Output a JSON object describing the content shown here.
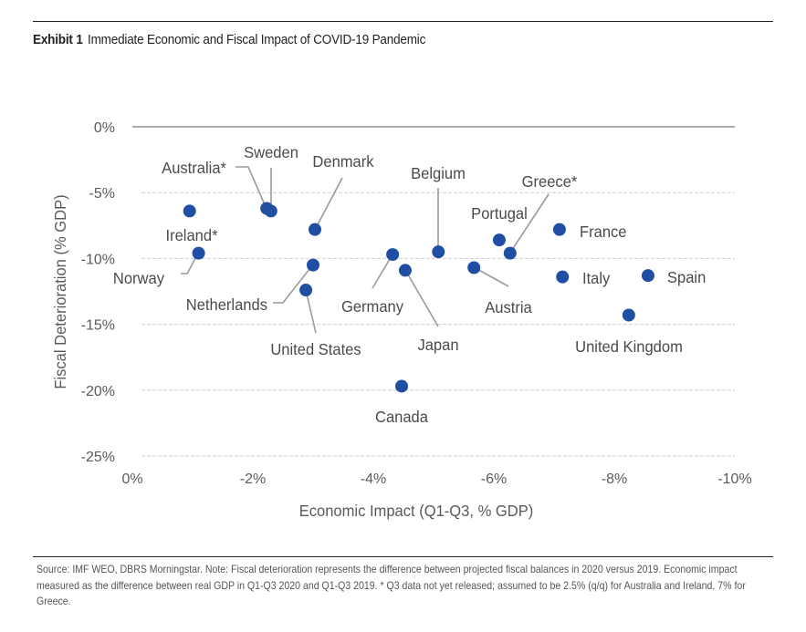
{
  "header": {
    "exhibit_label": "Exhibit 1",
    "title": "Immediate Economic and Fiscal Impact of COVID-19 Pandemic"
  },
  "footnote": "Source: IMF WEO, DBRS Morningstar. Note: Fiscal deterioration represents the difference between projected fiscal balances in 2020 versus 2019. Economic impact measured as the difference between real GDP in Q1-Q3 2020 and Q1-Q3 2019. * Q3 data not yet released; assumed to be 2.5% (q/q) for Australia and Ireland, 7% for Greece.",
  "chart_data": {
    "type": "scatter",
    "title": "Immediate Economic and Fiscal Impact of COVID-19 Pandemic",
    "xlabel": "Economic Impact (Q1-Q3, % GDP)",
    "ylabel": "Fiscal Deterioration (% GDP)",
    "xlim": [
      0,
      -10
    ],
    "ylim": [
      0,
      -25
    ],
    "xticks": [
      0,
      -2,
      -4,
      -6,
      -8,
      -10
    ],
    "xtick_labels": [
      "0%",
      "-2%",
      "-4%",
      "-6%",
      "-8%",
      "-10%"
    ],
    "yticks": [
      0,
      -5,
      -10,
      -15,
      -20,
      -25
    ],
    "ytick_labels": [
      "0%",
      "-5%",
      "-10%",
      "-15%",
      "-20%",
      "-25%"
    ],
    "grid": "horizontal dashed",
    "legend": "none",
    "marker_color": "#1f4ea3",
    "points": [
      {
        "name": "Ireland*",
        "x": -0.95,
        "y": -6.4
      },
      {
        "name": "Norway",
        "x": -1.1,
        "y": -9.6
      },
      {
        "name": "Australia*",
        "x": -2.23,
        "y": -6.2
      },
      {
        "name": "Sweden",
        "x": -2.3,
        "y": -6.4
      },
      {
        "name": "Denmark",
        "x": -3.03,
        "y": -7.8
      },
      {
        "name": "Netherlands",
        "x": -3.0,
        "y": -10.5
      },
      {
        "name": "United States",
        "x": -2.88,
        "y": -12.4
      },
      {
        "name": "Germany",
        "x": -4.32,
        "y": -9.7
      },
      {
        "name": "Japan",
        "x": -4.53,
        "y": -10.9
      },
      {
        "name": "Canada",
        "x": -4.47,
        "y": -19.7
      },
      {
        "name": "Belgium",
        "x": -5.08,
        "y": -9.5
      },
      {
        "name": "Austria",
        "x": -5.67,
        "y": -10.7
      },
      {
        "name": "Portugal",
        "x": -6.09,
        "y": -8.6
      },
      {
        "name": "Greece*",
        "x": -6.27,
        "y": -9.6
      },
      {
        "name": "France",
        "x": -7.09,
        "y": -7.8
      },
      {
        "name": "Italy",
        "x": -7.14,
        "y": -11.4
      },
      {
        "name": "Spain",
        "x": -8.56,
        "y": -11.3
      },
      {
        "name": "United Kingdom",
        "x": -8.24,
        "y": -14.3
      }
    ]
  }
}
